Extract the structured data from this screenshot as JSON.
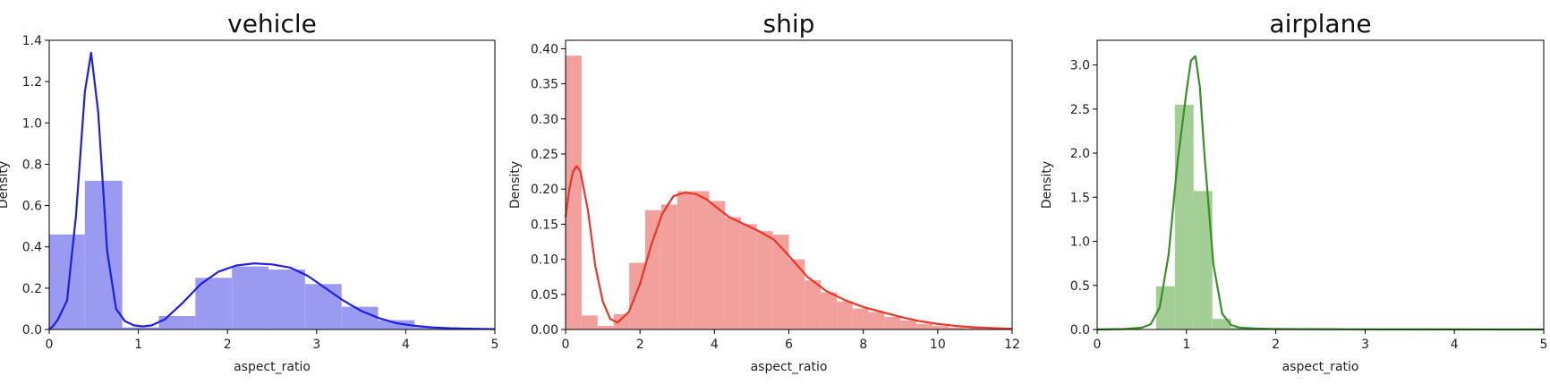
{
  "chart_data": [
    {
      "type": "histogram",
      "title": "vehicle",
      "xlabel": "aspect_ratio",
      "ylabel": "Density",
      "xlim": [
        0,
        5
      ],
      "ylim": [
        0,
        1.4
      ],
      "xticks": [
        0,
        1,
        2,
        3,
        4,
        5
      ],
      "xtick_labels": [
        "0",
        "1",
        "2",
        "3",
        "4",
        "5"
      ],
      "yticks": [
        0.0,
        0.2,
        0.4,
        0.6,
        0.8,
        1.0,
        1.2,
        1.4
      ],
      "ytick_labels": [
        "0.0",
        "0.2",
        "0.4",
        "0.6",
        "0.8",
        "1.0",
        "1.2",
        "1.4"
      ],
      "bar_color": "#9a9af0",
      "line_color": "#1f1fe0",
      "bins": [
        {
          "x0": 0.0,
          "x1": 0.4,
          "density": 0.46
        },
        {
          "x0": 0.4,
          "x1": 0.82,
          "density": 0.72
        },
        {
          "x0": 0.82,
          "x1": 1.23,
          "density": 0.01
        },
        {
          "x0": 1.23,
          "x1": 1.64,
          "density": 0.065
        },
        {
          "x0": 1.64,
          "x1": 2.05,
          "density": 0.25
        },
        {
          "x0": 2.05,
          "x1": 2.46,
          "density": 0.305
        },
        {
          "x0": 2.46,
          "x1": 2.87,
          "density": 0.29
        },
        {
          "x0": 2.87,
          "x1": 3.28,
          "density": 0.22
        },
        {
          "x0": 3.28,
          "x1": 3.69,
          "density": 0.11
        },
        {
          "x0": 3.69,
          "x1": 4.1,
          "density": 0.045
        },
        {
          "x0": 4.1,
          "x1": 4.51,
          "density": 0.01
        }
      ],
      "kde": {
        "x": [
          0,
          0.05,
          0.1,
          0.2,
          0.3,
          0.4,
          0.47,
          0.55,
          0.65,
          0.75,
          0.85,
          0.95,
          1.05,
          1.15,
          1.3,
          1.5,
          1.7,
          1.9,
          2.1,
          2.3,
          2.5,
          2.7,
          2.9,
          3.1,
          3.3,
          3.5,
          3.7,
          3.9,
          4.1,
          4.3,
          4.5,
          4.7,
          5.0
        ],
        "y": [
          0.0,
          0.02,
          0.05,
          0.14,
          0.55,
          1.15,
          1.34,
          1.05,
          0.38,
          0.1,
          0.04,
          0.02,
          0.015,
          0.02,
          0.05,
          0.13,
          0.22,
          0.28,
          0.31,
          0.32,
          0.315,
          0.3,
          0.26,
          0.2,
          0.14,
          0.09,
          0.055,
          0.03,
          0.018,
          0.01,
          0.006,
          0.004,
          0.002
        ]
      }
    },
    {
      "type": "histogram",
      "title": "ship",
      "xlabel": "aspect_ratio",
      "ylabel": "Density",
      "xlim": [
        0,
        12
      ],
      "ylim": [
        0,
        0.412
      ],
      "xticks": [
        0,
        2,
        4,
        6,
        8,
        10,
        12
      ],
      "xtick_labels": [
        "0",
        "2",
        "4",
        "6",
        "8",
        "10",
        "12"
      ],
      "yticks": [
        0.0,
        0.05,
        0.1,
        0.15,
        0.2,
        0.25,
        0.3,
        0.35,
        0.4
      ],
      "ytick_labels": [
        "0.00",
        "0.05",
        "0.10",
        "0.15",
        "0.20",
        "0.25",
        "0.30",
        "0.35",
        "0.40"
      ],
      "bar_color": "#f2a09c",
      "line_color": "#e8362c",
      "bins": [
        {
          "x0": 0.0,
          "x1": 0.43,
          "density": 0.39
        },
        {
          "x0": 0.43,
          "x1": 0.86,
          "density": 0.02
        },
        {
          "x0": 0.86,
          "x1": 1.29,
          "density": 0.005
        },
        {
          "x0": 1.29,
          "x1": 1.71,
          "density": 0.022
        },
        {
          "x0": 1.71,
          "x1": 2.14,
          "density": 0.095
        },
        {
          "x0": 2.14,
          "x1": 2.57,
          "density": 0.17
        },
        {
          "x0": 2.57,
          "x1": 3.0,
          "density": 0.178
        },
        {
          "x0": 3.0,
          "x1": 3.43,
          "density": 0.197
        },
        {
          "x0": 3.43,
          "x1": 3.86,
          "density": 0.197
        },
        {
          "x0": 3.86,
          "x1": 4.29,
          "density": 0.183
        },
        {
          "x0": 4.29,
          "x1": 4.71,
          "density": 0.16
        },
        {
          "x0": 4.71,
          "x1": 5.14,
          "density": 0.15
        },
        {
          "x0": 5.14,
          "x1": 5.57,
          "density": 0.14
        },
        {
          "x0": 5.57,
          "x1": 6.0,
          "density": 0.135
        },
        {
          "x0": 6.0,
          "x1": 6.43,
          "density": 0.1
        },
        {
          "x0": 6.43,
          "x1": 6.86,
          "density": 0.07
        },
        {
          "x0": 6.86,
          "x1": 7.29,
          "density": 0.053
        },
        {
          "x0": 7.29,
          "x1": 7.71,
          "density": 0.04
        },
        {
          "x0": 7.71,
          "x1": 8.14,
          "density": 0.03
        },
        {
          "x0": 8.14,
          "x1": 8.57,
          "density": 0.025
        },
        {
          "x0": 8.57,
          "x1": 9.0,
          "density": 0.018
        },
        {
          "x0": 9.0,
          "x1": 9.43,
          "density": 0.013
        },
        {
          "x0": 9.43,
          "x1": 9.86,
          "density": 0.008
        },
        {
          "x0": 9.86,
          "x1": 10.29,
          "density": 0.005
        },
        {
          "x0": 10.29,
          "x1": 10.71,
          "density": 0.003
        },
        {
          "x0": 10.71,
          "x1": 11.14,
          "density": 0.002
        },
        {
          "x0": 11.14,
          "x1": 11.57,
          "density": 0.001
        }
      ],
      "kde": {
        "x": [
          0,
          0.1,
          0.2,
          0.3,
          0.4,
          0.6,
          0.8,
          1.0,
          1.2,
          1.4,
          1.7,
          2.0,
          2.3,
          2.6,
          2.9,
          3.2,
          3.5,
          3.8,
          4.1,
          4.4,
          4.8,
          5.2,
          5.6,
          6.0,
          6.5,
          7.0,
          7.5,
          8.0,
          8.5,
          9.0,
          9.5,
          10.0,
          10.5,
          11.0,
          11.5,
          12.0
        ],
        "y": [
          0.16,
          0.2,
          0.225,
          0.233,
          0.225,
          0.17,
          0.09,
          0.04,
          0.015,
          0.01,
          0.025,
          0.065,
          0.12,
          0.165,
          0.19,
          0.195,
          0.193,
          0.185,
          0.172,
          0.16,
          0.15,
          0.14,
          0.128,
          0.105,
          0.075,
          0.055,
          0.042,
          0.032,
          0.025,
          0.018,
          0.012,
          0.008,
          0.005,
          0.003,
          0.002,
          0.001
        ]
      }
    },
    {
      "type": "histogram",
      "title": "airplane",
      "xlabel": "aspect_ratio",
      "ylabel": "Density",
      "xlim": [
        0,
        5
      ],
      "ylim": [
        0,
        3.28
      ],
      "xticks": [
        0,
        1,
        2,
        3,
        4,
        5
      ],
      "xtick_labels": [
        "0",
        "1",
        "2",
        "3",
        "4",
        "5"
      ],
      "yticks": [
        0.0,
        0.5,
        1.0,
        1.5,
        2.0,
        2.5,
        3.0
      ],
      "ytick_labels": [
        "0.0",
        "0.5",
        "1.0",
        "1.5",
        "2.0",
        "2.5",
        "3.0"
      ],
      "bar_color": "#a3cf96",
      "line_color": "#3a8f2a",
      "bins": [
        {
          "x0": 0.66,
          "x1": 0.87,
          "density": 0.49
        },
        {
          "x0": 0.87,
          "x1": 1.08,
          "density": 2.55
        },
        {
          "x0": 1.08,
          "x1": 1.29,
          "density": 1.57
        },
        {
          "x0": 1.29,
          "x1": 1.5,
          "density": 0.12
        },
        {
          "x0": 1.5,
          "x1": 1.71,
          "density": 0.02
        }
      ],
      "kde": {
        "x": [
          0,
          0.3,
          0.5,
          0.6,
          0.7,
          0.8,
          0.9,
          0.95,
          1.0,
          1.05,
          1.1,
          1.15,
          1.2,
          1.3,
          1.4,
          1.5,
          1.6,
          1.8,
          2.0,
          3.0,
          4.0,
          5.0
        ],
        "y": [
          0.0,
          0.005,
          0.02,
          0.06,
          0.25,
          0.85,
          1.9,
          2.3,
          2.7,
          3.05,
          3.1,
          2.75,
          2.0,
          0.75,
          0.18,
          0.05,
          0.02,
          0.01,
          0.005,
          0.002,
          0.001,
          0.0
        ]
      }
    }
  ]
}
